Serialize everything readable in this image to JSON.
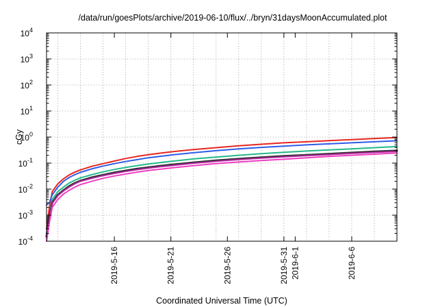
{
  "chart_data": {
    "type": "line",
    "title": "/data/run/goesPlots/archive/2019-06-10/flux/../bryn/31daysMoonAccumulated.plot",
    "xlabel": "Coordinated Universal Time (UTC)",
    "ylabel": "cGy",
    "y_scale": "log",
    "ylim": [
      0.0001,
      10000
    ],
    "xlim": [
      "2019-05-10T00:00",
      "2019-06-10T00:00"
    ],
    "grid": true,
    "y_ticks": [
      {
        "value": 0.0001,
        "base": "10",
        "exp": "-4"
      },
      {
        "value": 0.001,
        "base": "10",
        "exp": "-3"
      },
      {
        "value": 0.01,
        "base": "10",
        "exp": "-2"
      },
      {
        "value": 0.1,
        "base": "10",
        "exp": "-1"
      },
      {
        "value": 1,
        "base": "10",
        "exp": "0"
      },
      {
        "value": 10,
        "base": "10",
        "exp": "1"
      },
      {
        "value": 100,
        "base": "10",
        "exp": "2"
      },
      {
        "value": 1000,
        "base": "10",
        "exp": "3"
      },
      {
        "value": 10000,
        "base": "10",
        "exp": "4"
      }
    ],
    "x_ticks": [
      "2019-5-16",
      "2019-5-21",
      "2019-5-26",
      "2019-5-31",
      "2019-6-1",
      "2019-6-6"
    ],
    "x_tick_dates": [
      "2019-05-16",
      "2019-05-21",
      "2019-05-26",
      "2019-05-31",
      "2019-06-01",
      "2019-06-06"
    ],
    "x_tick_extra_gridlines": [
      "2019-05-11",
      "2019-05-13",
      "2019-05-15",
      "2019-05-17",
      "2019-05-19",
      "2019-05-21",
      "2019-05-23",
      "2019-05-25",
      "2019-05-27",
      "2019-05-29",
      "2019-05-31",
      "2019-06-02",
      "2019-06-04",
      "2019-06-06",
      "2019-06-08"
    ],
    "series": [
      {
        "color": "#e8251f",
        "stroke_width": 2,
        "x": [
          "2019-05-10T00:00",
          "2019-05-10T06:00",
          "2019-05-10T12:00",
          "2019-05-11T00:00",
          "2019-05-11T12:00",
          "2019-05-12T00:00",
          "2019-05-12T12:00",
          "2019-05-13T00:00",
          "2019-05-14T00:00",
          "2019-05-15T00:00",
          "2019-05-16T00:00",
          "2019-05-17T00:00",
          "2019-05-18T00:00",
          "2019-05-19T00:00",
          "2019-05-20T00:00",
          "2019-05-21T00:00",
          "2019-05-23T00:00",
          "2019-05-25T00:00",
          "2019-05-27T00:00",
          "2019-05-29T00:00",
          "2019-05-31T00:00",
          "2019-06-02T00:00",
          "2019-06-04T00:00",
          "2019-06-06T00:00",
          "2019-06-08T00:00",
          "2019-06-10T00:00"
        ],
        "y": [
          0.0003,
          0.002,
          0.008,
          0.016,
          0.025,
          0.035,
          0.045,
          0.055,
          0.075,
          0.095,
          0.12,
          0.15,
          0.18,
          0.21,
          0.24,
          0.27,
          0.33,
          0.39,
          0.46,
          0.53,
          0.6,
          0.66,
          0.73,
          0.8,
          0.88,
          0.95
        ]
      },
      {
        "color": "#2f5be8",
        "stroke_width": 2,
        "x": [
          "2019-05-10T00:00",
          "2019-05-10T06:00",
          "2019-05-10T12:00",
          "2019-05-11T00:00",
          "2019-05-11T12:00",
          "2019-05-12T00:00",
          "2019-05-12T12:00",
          "2019-05-13T00:00",
          "2019-05-14T00:00",
          "2019-05-15T00:00",
          "2019-05-16T00:00",
          "2019-05-17T00:00",
          "2019-05-18T00:00",
          "2019-05-19T00:00",
          "2019-05-20T00:00",
          "2019-05-21T00:00",
          "2019-05-23T00:00",
          "2019-05-25T00:00",
          "2019-05-27T00:00",
          "2019-05-29T00:00",
          "2019-05-31T00:00",
          "2019-06-02T00:00",
          "2019-06-04T00:00",
          "2019-06-06T00:00",
          "2019-06-08T00:00",
          "2019-06-10T00:00"
        ],
        "y": [
          0.0025,
          0.003,
          0.006,
          0.012,
          0.02,
          0.028,
          0.036,
          0.044,
          0.06,
          0.077,
          0.095,
          0.115,
          0.135,
          0.16,
          0.18,
          0.205,
          0.25,
          0.3,
          0.35,
          0.4,
          0.45,
          0.5,
          0.55,
          0.6,
          0.66,
          0.72
        ]
      },
      {
        "color": "#22b88a",
        "stroke_width": 2,
        "x": [
          "2019-05-10T00:00",
          "2019-05-10T06:00",
          "2019-05-10T12:00",
          "2019-05-11T00:00",
          "2019-05-11T12:00",
          "2019-05-12T00:00",
          "2019-05-12T12:00",
          "2019-05-13T00:00",
          "2019-05-14T00:00",
          "2019-05-15T00:00",
          "2019-05-16T00:00",
          "2019-05-17T00:00",
          "2019-05-18T00:00",
          "2019-05-19T00:00",
          "2019-05-20T00:00",
          "2019-05-21T00:00",
          "2019-05-23T00:00",
          "2019-05-25T00:00",
          "2019-05-27T00:00",
          "2019-05-29T00:00",
          "2019-05-31T00:00",
          "2019-06-02T00:00",
          "2019-06-04T00:00",
          "2019-06-06T00:00",
          "2019-06-08T00:00",
          "2019-06-10T00:00"
        ],
        "y": [
          0.0002,
          0.001,
          0.004,
          0.008,
          0.012,
          0.017,
          0.022,
          0.027,
          0.036,
          0.046,
          0.057,
          0.068,
          0.08,
          0.092,
          0.104,
          0.117,
          0.145,
          0.17,
          0.2,
          0.23,
          0.26,
          0.29,
          0.32,
          0.35,
          0.39,
          0.43
        ]
      },
      {
        "color": "#2c2c2c",
        "stroke_width": 3,
        "x": [
          "2019-05-10T00:00",
          "2019-05-10T06:00",
          "2019-05-10T12:00",
          "2019-05-11T00:00",
          "2019-05-11T12:00",
          "2019-05-12T00:00",
          "2019-05-12T12:00",
          "2019-05-13T00:00",
          "2019-05-14T00:00",
          "2019-05-15T00:00",
          "2019-05-16T00:00",
          "2019-05-17T00:00",
          "2019-05-18T00:00",
          "2019-05-19T00:00",
          "2019-05-20T00:00",
          "2019-05-21T00:00",
          "2019-05-23T00:00",
          "2019-05-25T00:00",
          "2019-05-27T00:00",
          "2019-05-29T00:00",
          "2019-05-31T00:00",
          "2019-06-02T00:00",
          "2019-06-04T00:00",
          "2019-06-06T00:00",
          "2019-06-08T00:00",
          "2019-06-10T00:00"
        ],
        "y": [
          0.00015,
          0.0008,
          0.003,
          0.006,
          0.009,
          0.013,
          0.017,
          0.021,
          0.028,
          0.035,
          0.043,
          0.051,
          0.06,
          0.068,
          0.077,
          0.086,
          0.105,
          0.125,
          0.145,
          0.165,
          0.185,
          0.205,
          0.225,
          0.25,
          0.275,
          0.3
        ]
      },
      {
        "color": "#b0299e",
        "stroke_width": 2,
        "x": [
          "2019-05-10T00:00",
          "2019-05-10T06:00",
          "2019-05-10T12:00",
          "2019-05-11T00:00",
          "2019-05-11T12:00",
          "2019-05-12T00:00",
          "2019-05-12T12:00",
          "2019-05-13T00:00",
          "2019-05-14T00:00",
          "2019-05-15T00:00",
          "2019-05-16T00:00",
          "2019-05-17T00:00",
          "2019-05-18T00:00",
          "2019-05-19T00:00",
          "2019-05-20T00:00",
          "2019-05-21T00:00",
          "2019-05-23T00:00",
          "2019-05-25T00:00",
          "2019-05-27T00:00",
          "2019-05-29T00:00",
          "2019-05-31T00:00",
          "2019-06-02T00:00",
          "2019-06-04T00:00",
          "2019-06-06T00:00",
          "2019-06-08T00:00",
          "2019-06-10T00:00"
        ],
        "y": [
          0.00014,
          0.0007,
          0.0028,
          0.0056,
          0.0085,
          0.012,
          0.016,
          0.02,
          0.026,
          0.033,
          0.04,
          0.048,
          0.056,
          0.064,
          0.072,
          0.08,
          0.098,
          0.117,
          0.136,
          0.155,
          0.174,
          0.193,
          0.212,
          0.235,
          0.258,
          0.28
        ]
      },
      {
        "color": "#f03cc0",
        "stroke_width": 2,
        "x": [
          "2019-05-10T00:00",
          "2019-05-10T06:00",
          "2019-05-10T12:00",
          "2019-05-11T00:00",
          "2019-05-11T12:00",
          "2019-05-12T00:00",
          "2019-05-12T12:00",
          "2019-05-13T00:00",
          "2019-05-14T00:00",
          "2019-05-15T00:00",
          "2019-05-16T00:00",
          "2019-05-17T00:00",
          "2019-05-18T00:00",
          "2019-05-19T00:00",
          "2019-05-20T00:00",
          "2019-05-21T00:00",
          "2019-05-23T00:00",
          "2019-05-25T00:00",
          "2019-05-27T00:00",
          "2019-05-29T00:00",
          "2019-05-31T00:00",
          "2019-06-02T00:00",
          "2019-06-04T00:00",
          "2019-06-06T00:00",
          "2019-06-08T00:00",
          "2019-06-10T00:00"
        ],
        "y": [
          0.0001,
          0.0005,
          0.002,
          0.004,
          0.0065,
          0.009,
          0.012,
          0.015,
          0.02,
          0.026,
          0.032,
          0.038,
          0.045,
          0.052,
          0.058,
          0.065,
          0.08,
          0.095,
          0.11,
          0.125,
          0.14,
          0.16,
          0.18,
          0.2,
          0.22,
          0.245
        ]
      }
    ]
  }
}
